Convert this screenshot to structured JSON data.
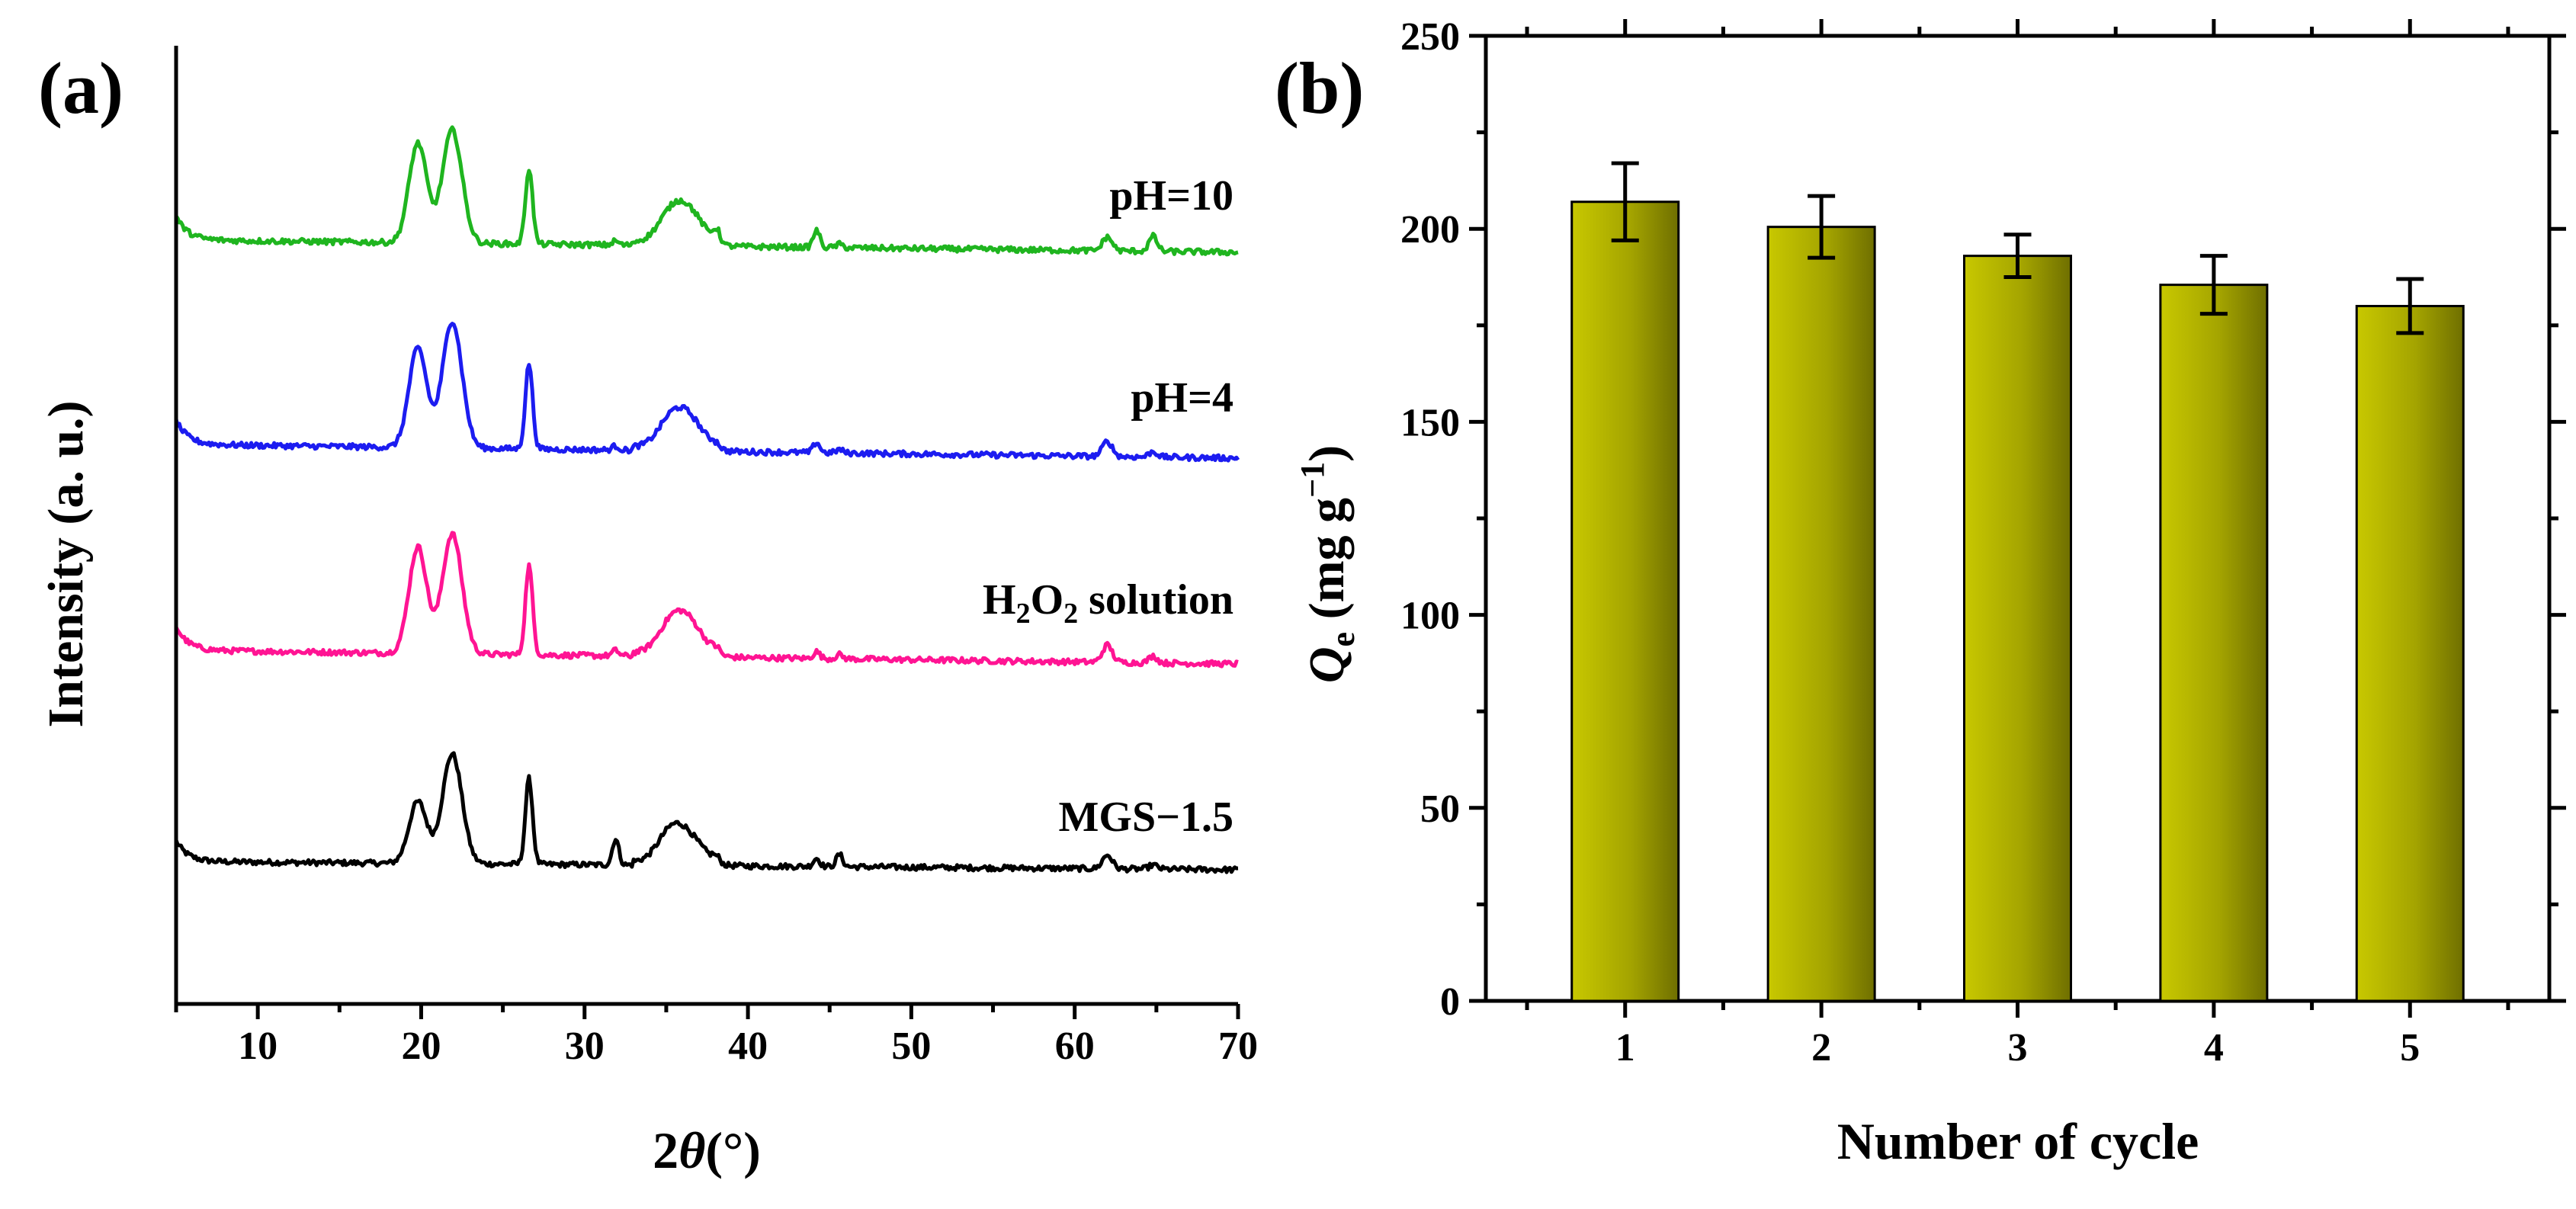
{
  "chart_data": [
    {
      "type": "line",
      "panel_label": "(a)",
      "xlabel_prefix": "2",
      "xlabel_symbol": "θ",
      "xlabel_unit": "(°)",
      "ylabel": "Intensity (a. u.)",
      "xlim": [
        5,
        70
      ],
      "xticks": [
        "10",
        "20",
        "30",
        "40",
        "50",
        "60",
        "70"
      ],
      "yticks_shown": false,
      "peaks_2theta": [
        19.8,
        21.9,
        26.6,
        31.9,
        35.2,
        36.3,
        38.1,
        44.2,
        45.6,
        62.0,
        64.8
      ],
      "series": [
        {
          "name": "MGS−1.5",
          "label_main": "MGS−1.5",
          "color": "#000000",
          "offset": 0,
          "profile": {
            "start_level": 0.3,
            "base_level": 0.22,
            "end_level": 0.1,
            "peak_heights": [
              0.9,
              1.6,
              1.25,
              0.38,
              0.35,
              0.35,
              0.1,
              0.12,
              0.18,
              0.2,
              0.06
            ]
          }
        },
        {
          "name": "H2O2 solution",
          "label_main": "H",
          "label_sub1": "2",
          "label_mid": "O",
          "label_sub2": "2",
          "label_tail": " solution",
          "color": "#ff1493",
          "offset": 1,
          "profile": {
            "start_level": 0.35,
            "base_level": 0.3,
            "end_level": 0.1,
            "peak_heights": [
              1.55,
              1.75,
              1.3,
              0.08,
              0.32,
              0.45,
              0.1,
              0.1,
              0.06,
              0.25,
              0.1
            ]
          }
        },
        {
          "name": "pH=4",
          "label_main": "pH=4",
          "color": "#1c1cf0",
          "offset": 2,
          "profile": {
            "start_level": 0.35,
            "base_level": 0.3,
            "end_level": 0.1,
            "peak_heights": [
              1.45,
              1.85,
              1.25,
              0.06,
              0.3,
              0.42,
              0.08,
              0.15,
              0.05,
              0.22,
              0.08
            ]
          }
        },
        {
          "name": "pH=10",
          "label_main": "pH=10",
          "color": "#1fb51f",
          "offset": 3,
          "profile": {
            "start_level": 0.35,
            "base_level": 0.28,
            "end_level": 0.1,
            "peak_heights": [
              1.45,
              1.65,
              1.1,
              0.06,
              0.3,
              0.45,
              0.2,
              0.25,
              0.05,
              0.2,
              0.22
            ]
          }
        }
      ]
    },
    {
      "type": "bar",
      "panel_label": "(b)",
      "title": "",
      "xlabel": "Number of cycle",
      "ylabel_symbol": "Q",
      "ylabel_sub": "e",
      "ylabel_units": " (mg g",
      "ylabel_sup": "−1",
      "ylabel_close": ")",
      "categories": [
        "1",
        "2",
        "3",
        "4",
        "5"
      ],
      "values": [
        207,
        200.5,
        193,
        185.5,
        180
      ],
      "errors": [
        10,
        8,
        5.5,
        7.5,
        7
      ],
      "ylim": [
        0,
        250
      ],
      "yticks": [
        "0",
        "50",
        "100",
        "150",
        "200",
        "250"
      ],
      "bar_color_light": "#c8c800",
      "bar_color_dark": "#6f6f00"
    }
  ]
}
